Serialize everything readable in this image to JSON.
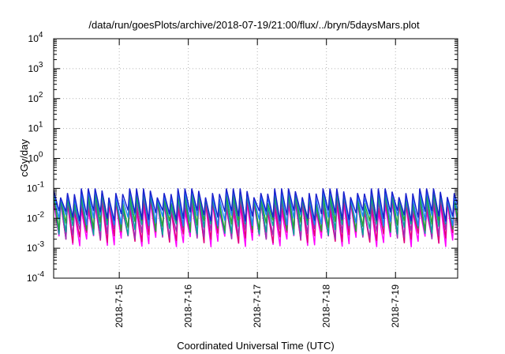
{
  "chart_data": {
    "type": "line",
    "title": "/data/run/goesPlots/archive/2018-07-19/21:00/flux/../bryn/5daysMars.plot",
    "xlabel": "Coordinated Universal Time (UTC)",
    "ylabel": "cGy/day",
    "yscale": "log",
    "ylim": [
      0.0001,
      10000
    ],
    "xlim_days": [
      14.05,
      19.9
    ],
    "grid": true,
    "legend": "none",
    "y_ticks": [
      {
        "base": "10",
        "exp": "-4",
        "value": 0.0001
      },
      {
        "base": "10",
        "exp": "-3",
        "value": 0.001
      },
      {
        "base": "10",
        "exp": "-2",
        "value": 0.01
      },
      {
        "base": "10",
        "exp": "-1",
        "value": 0.1
      },
      {
        "base": "10",
        "exp": "0",
        "value": 1
      },
      {
        "base": "10",
        "exp": "1",
        "value": 10
      },
      {
        "base": "10",
        "exp": "2",
        "value": 100
      },
      {
        "base": "10",
        "exp": "3",
        "value": 1000
      },
      {
        "base": "10",
        "exp": "4",
        "value": 10000
      }
    ],
    "x_ticks": [
      {
        "label": "2018-7-15",
        "day": 15
      },
      {
        "label": "2018-7-16",
        "day": 16
      },
      {
        "label": "2018-7-17",
        "day": 17
      },
      {
        "label": "2018-7-18",
        "day": 18
      },
      {
        "label": "2018-7-19",
        "day": 19
      }
    ],
    "sawtooth": {
      "period_hours": 2.4,
      "peak_range": [
        0.05,
        0.1
      ],
      "trough_range": [
        0.0015,
        0.008
      ]
    },
    "series": [
      {
        "color": "#ff00ff",
        "peak": 0.025,
        "trough": 0.0018
      },
      {
        "color": "#e0007a",
        "peak": 0.03,
        "trough": 0.0024
      },
      {
        "color": "#9b2fb5",
        "peak": 0.038,
        "trough": 0.0032
      },
      {
        "color": "#00a898",
        "peak": 0.048,
        "trough": 0.0045
      },
      {
        "color": "#2a9f3a",
        "peak": 0.058,
        "trough": 0.006
      },
      {
        "color": "#2080ff",
        "peak": 0.07,
        "trough": 0.009
      },
      {
        "color": "#1a1fcc",
        "peak": 0.085,
        "trough": 0.013
      }
    ]
  }
}
